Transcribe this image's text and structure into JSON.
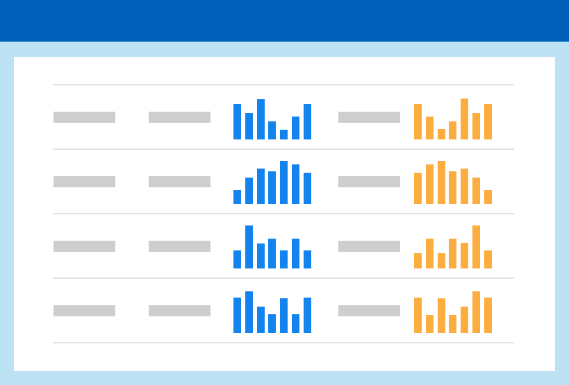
{
  "colors": {
    "header": "#005fbb",
    "background": "#bde2f4",
    "card": "#ffffff",
    "divider": "#e1e1e1",
    "placeholder": "#cecece",
    "blue_series": "#1384ed",
    "orange_series": "#fbae3f"
  },
  "table": {
    "rows": [
      {
        "blue_bars": [
          0.83,
          0.61,
          0.94,
          0.42,
          0.22,
          0.53,
          0.83
        ],
        "orange_bars": [
          0.82,
          0.53,
          0.24,
          0.42,
          0.95,
          0.62,
          0.83
        ]
      },
      {
        "blue_bars": [
          0.32,
          0.62,
          0.82,
          0.76,
          1.0,
          0.92,
          0.72
        ],
        "orange_bars": [
          0.72,
          0.92,
          1.0,
          0.76,
          0.82,
          0.62,
          0.32
        ]
      },
      {
        "blue_bars": [
          0.42,
          1.0,
          0.58,
          0.7,
          0.42,
          0.7,
          0.42
        ],
        "orange_bars": [
          0.35,
          0.7,
          0.35,
          0.7,
          0.6,
          1.0,
          0.42
        ]
      },
      {
        "blue_bars": [
          0.83,
          0.97,
          0.62,
          0.43,
          0.8,
          0.43,
          0.82
        ],
        "orange_bars": [
          0.82,
          0.42,
          0.8,
          0.42,
          0.62,
          0.97,
          0.83
        ]
      }
    ]
  }
}
